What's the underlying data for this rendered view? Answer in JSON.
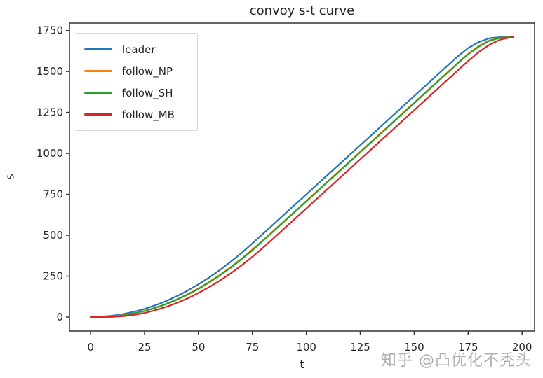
{
  "chart_data": {
    "type": "line",
    "title": "convoy s-t curve",
    "xlabel": "t",
    "ylabel": "s",
    "x": [
      0,
      5,
      10,
      15,
      20,
      25,
      30,
      35,
      40,
      45,
      50,
      55,
      60,
      65,
      70,
      75,
      80,
      85,
      90,
      95,
      100,
      105,
      110,
      115,
      120,
      125,
      130,
      135,
      140,
      145,
      150,
      155,
      160,
      165,
      170,
      175,
      180,
      185,
      190,
      195,
      196
    ],
    "series": [
      {
        "name": "leader",
        "color": "#1f77b4",
        "values": [
          0,
          2,
          8,
          18,
          32,
          50,
          72,
          98,
          128,
          162,
          200,
          242,
          288,
          338,
          392,
          450,
          510,
          570,
          630,
          690,
          750,
          810,
          870,
          930,
          990,
          1050,
          1110,
          1170,
          1230,
          1290,
          1350,
          1410,
          1470,
          1530,
          1590,
          1643,
          1680,
          1703,
          1710,
          1710,
          1710
        ]
      },
      {
        "name": "follow_NP",
        "color": "#ff7f0e",
        "values": [
          0,
          0,
          4,
          11,
          22,
          38,
          57,
          81,
          108,
          140,
          175,
          215,
          258,
          306,
          357,
          413,
          470,
          530,
          590,
          650,
          710,
          770,
          830,
          890,
          950,
          1010,
          1070,
          1130,
          1190,
          1250,
          1310,
          1370,
          1430,
          1490,
          1550,
          1608,
          1656,
          1690,
          1706,
          1710,
          1710
        ]
      },
      {
        "name": "follow_SH",
        "color": "#2ca02c",
        "values": [
          0,
          0,
          3,
          10,
          22,
          37,
          56,
          79,
          106,
          137,
          172,
          211,
          255,
          302,
          353,
          408,
          467,
          527,
          587,
          647,
          707,
          767,
          827,
          887,
          947,
          1007,
          1067,
          1127,
          1187,
          1247,
          1307,
          1367,
          1427,
          1487,
          1547,
          1605,
          1652,
          1688,
          1705,
          1710,
          1710
        ]
      },
      {
        "name": "follow_MB",
        "color": "#d62728",
        "values": [
          0,
          0,
          1,
          5,
          13,
          25,
          42,
          62,
          86,
          114,
          147,
          183,
          223,
          267,
          316,
          368,
          424,
          484,
          544,
          604,
          664,
          724,
          784,
          844,
          904,
          964,
          1024,
          1084,
          1144,
          1204,
          1264,
          1324,
          1384,
          1444,
          1504,
          1564,
          1620,
          1664,
          1695,
          1709,
          1710
        ]
      }
    ],
    "xticks": [
      0,
      25,
      50,
      75,
      100,
      125,
      150,
      175,
      200
    ],
    "yticks": [
      0,
      250,
      500,
      750,
      1000,
      1250,
      1500,
      1750
    ],
    "xlim": [
      -9.8,
      205.8
    ],
    "ylim": [
      -85.5,
      1795.5
    ],
    "grid": false,
    "legend_position": "upper left",
    "line_width": 2.2,
    "spine_color": "#333333",
    "tick_color": "#333333"
  },
  "watermark": {
    "text": "知乎 @凸优化不秃头",
    "color": "#b0b0b0"
  }
}
